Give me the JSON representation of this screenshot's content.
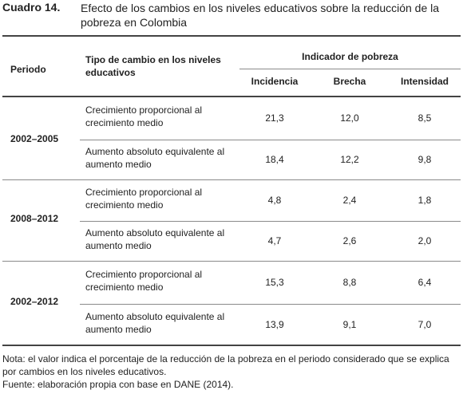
{
  "caption": {
    "label": "Cuadro 14.",
    "title": "Efecto de los cambios en los niveles educativos sobre la reducción de la pobreza en Colombia"
  },
  "table": {
    "headers": {
      "periodo": "Periodo",
      "tipo": "Tipo de cambio en los niveles educativos",
      "indicador": "Indicador de pobreza",
      "incidencia": "Incidencia",
      "brecha": "Brecha",
      "intensidad": "Intensidad"
    },
    "groups": [
      {
        "period": "2002–2005",
        "rows": [
          {
            "type": "Crecimiento proporcional al crecimiento medio",
            "incidencia": "21,3",
            "brecha": "12,0",
            "intensidad": "8,5"
          },
          {
            "type": "Aumento absoluto equivalente al aumento medio",
            "incidencia": "18,4",
            "brecha": "12,2",
            "intensidad": "9,8"
          }
        ]
      },
      {
        "period": "2008–2012",
        "rows": [
          {
            "type": "Crecimiento proporcional al crecimiento medio",
            "incidencia": "4,8",
            "brecha": "2,4",
            "intensidad": "1,8"
          },
          {
            "type": "Aumento absoluto equivalente al aumento medio",
            "incidencia": "4,7",
            "brecha": "2,6",
            "intensidad": "2,0"
          }
        ]
      },
      {
        "period": "2002–2012",
        "rows": [
          {
            "type": "Crecimiento proporcional al crecimiento medio",
            "incidencia": "15,3",
            "brecha": "8,8",
            "intensidad": "6,4"
          },
          {
            "type": "Aumento absoluto equivalente al aumento medio",
            "incidencia": "13,9",
            "brecha": "9,1",
            "intensidad": "7,0"
          }
        ]
      }
    ]
  },
  "notes": {
    "nota": "Nota: el valor indica el porcentaje de la reducción de la pobreza en el periodo considerado que se explica por cambios en los niveles educativos.",
    "fuente": "Fuente: elaboración propia con base en DANE (2014)."
  }
}
